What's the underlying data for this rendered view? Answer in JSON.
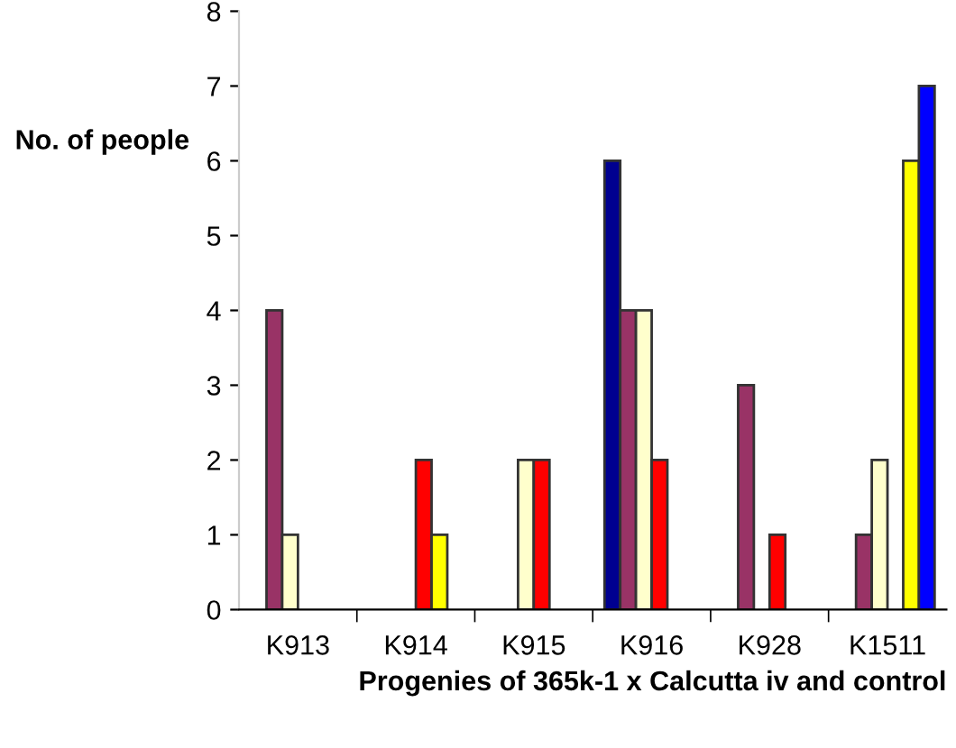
{
  "chart_data": {
    "type": "bar",
    "xlabel": "Progenies of 365k-1 x Calcutta iv and control",
    "ylabel": "No. of people",
    "categories": [
      "K913",
      "K914",
      "K915",
      "K916",
      "K928",
      "K1511"
    ],
    "series": [
      {
        "color": "#000090",
        "values": [
          null,
          null,
          null,
          6,
          null,
          null
        ]
      },
      {
        "color": "#993366",
        "values": [
          4,
          null,
          null,
          4,
          3,
          1
        ]
      },
      {
        "color": "#ffffcc",
        "values": [
          1,
          null,
          2,
          4,
          null,
          2
        ]
      },
      {
        "color": "#ff0000",
        "values": [
          null,
          2,
          2,
          2,
          1,
          null
        ]
      },
      {
        "color": "#ffff00",
        "values": [
          null,
          1,
          null,
          null,
          null,
          6
        ]
      },
      {
        "color": "#0000ff",
        "values": [
          null,
          null,
          null,
          null,
          null,
          7
        ]
      }
    ],
    "ylim": [
      0,
      8
    ],
    "yticks": [
      0,
      1,
      2,
      3,
      4,
      5,
      6,
      7,
      8
    ],
    "grid": false
  }
}
